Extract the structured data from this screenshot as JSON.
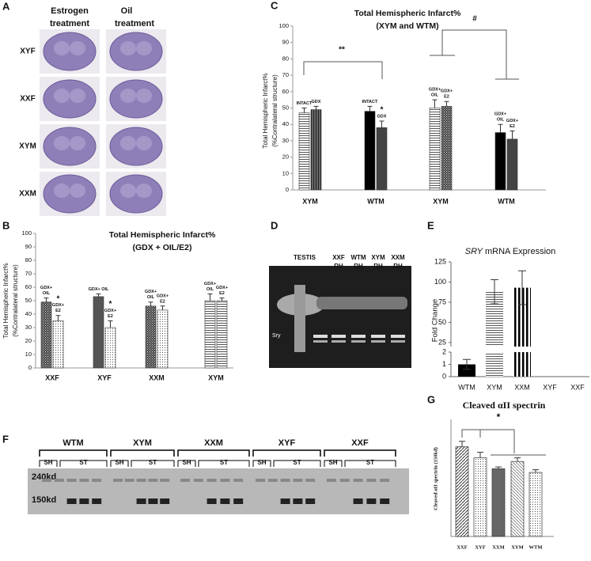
{
  "figure": {
    "panel_A": {
      "letter": "A",
      "columns": [
        [
          "Estrogen",
          "treatment"
        ],
        [
          "Oil",
          "treatment"
        ]
      ],
      "rows": [
        "XYF",
        "XXF",
        "XYM",
        "XXM"
      ]
    },
    "panel_D": {
      "letter": "D",
      "lanes": [
        [
          "TESTIS"
        ],
        [
          "XXF",
          "RH"
        ],
        [
          "WTM",
          "RH"
        ],
        [
          "XYM",
          "RH"
        ],
        [
          "XXM",
          "RH"
        ]
      ],
      "marker": "Sry"
    },
    "panel_F": {
      "letter": "F",
      "groups": [
        "WTM",
        "XYM",
        "XXM",
        "XYF",
        "XXF"
      ],
      "subgroups": [
        "SH",
        "ST"
      ],
      "sizes": [
        "240kd",
        "150kd"
      ]
    }
  },
  "chart_data": [
    {
      "type": "grouped_bar",
      "panel": "C",
      "title": "Total Hemispheric Infarct%",
      "subtitle": "(XYM and WTM)",
      "ylabel": [
        "Total Hemispheric Infarct%",
        "(%Contralateral structure)"
      ],
      "ylim": [
        0,
        100
      ],
      "yticks": [
        0,
        10,
        20,
        30,
        40,
        50,
        60,
        70,
        80,
        90,
        100
      ],
      "annotations": [
        "**",
        "#"
      ],
      "groups": [
        {
          "category": "XYM",
          "bars": [
            {
              "label": [
                "INTACT"
              ],
              "value": 47,
              "error": 3,
              "fill": "hstripe"
            },
            {
              "label": [
                "GDX"
              ],
              "value": 49,
              "error": 2,
              "fill": "darkhatch"
            }
          ]
        },
        {
          "category": "WTM",
          "bars": [
            {
              "label": [
                "INTACT"
              ],
              "value": 48,
              "error": 3,
              "fill": "#000000"
            },
            {
              "label": [
                "GDX"
              ],
              "note": "*",
              "value": 38,
              "error": 4,
              "fill": "#444444"
            }
          ]
        },
        {
          "category": "XYM",
          "bars": [
            {
              "label": [
                "GDX+",
                "OIL"
              ],
              "value": 50,
              "error": 5,
              "fill": "hstripe"
            },
            {
              "label": [
                "GDX+",
                "E2"
              ],
              "value": 51,
              "error": 3,
              "fill": "check"
            }
          ]
        },
        {
          "category": "WTM",
          "bars": [
            {
              "label": [
                "GDX+",
                "OIL"
              ],
              "value": 35,
              "error": 5,
              "fill": "#000000"
            },
            {
              "label": [
                "GDX+",
                "E2"
              ],
              "value": 31,
              "error": 5,
              "fill": "#444444"
            }
          ]
        }
      ]
    },
    {
      "type": "grouped_bar",
      "panel": "B",
      "title": "Total Hemispheric Infarct%",
      "subtitle": "(GDX + OIL/E2)",
      "ylabel": [
        "Total Hemispheric Infarct%",
        "(%Contralateral structure)"
      ],
      "ylim": [
        0,
        100
      ],
      "yticks": [
        0,
        10,
        20,
        30,
        40,
        50,
        60,
        70,
        80,
        90,
        100
      ],
      "annotations": [],
      "groups": [
        {
          "category": "XXF",
          "bars": [
            {
              "label": [
                "GDX+",
                "OIL"
              ],
              "value": 49,
              "error": 3,
              "fill": "check"
            },
            {
              "label": [
                "GDX+",
                "E2"
              ],
              "note": "*",
              "value": 35,
              "error": 4,
              "fill": "dots"
            }
          ]
        },
        {
          "category": "XYF",
          "bars": [
            {
              "label": [
                "GDX+ OIL"
              ],
              "value": 53,
              "error": 2,
              "fill": "#555555"
            },
            {
              "label": [
                "GDX+",
                "E2"
              ],
              "note": "*",
              "value": 30,
              "error": 5,
              "fill": "dots"
            }
          ]
        },
        {
          "category": "XXM",
          "bars": [
            {
              "label": [
                "GDX+",
                "OIL"
              ],
              "value": 46,
              "error": 3,
              "fill": "check"
            },
            {
              "label": [
                "GDX+",
                "E2"
              ],
              "value": 43,
              "error": 3,
              "fill": "dots"
            }
          ]
        },
        {
          "category": "XYM",
          "bars": [
            {
              "label": [
                "GDX+",
                "OIL"
              ],
              "value": 50,
              "error": 5,
              "fill": "hstripe"
            },
            {
              "label": [
                "GDX+",
                "E2"
              ],
              "value": 50,
              "error": 2,
              "fill": "hstripe"
            }
          ]
        }
      ]
    },
    {
      "type": "broken_bar",
      "panel": "E",
      "title_italic": "SRY",
      "title": " mRNA Expression",
      "ylabel": "Fold Change",
      "ylim_lower": [
        0,
        2
      ],
      "yticks_lower": [
        0,
        1,
        2
      ],
      "ylim_upper": [
        20,
        125
      ],
      "yticks_upper": [
        25,
        50,
        75,
        100,
        125
      ],
      "categories": [
        "WTM",
        "XYM",
        "XXM",
        "XYF",
        "XXF"
      ],
      "values": [
        1,
        88,
        93,
        0,
        0
      ],
      "errors": [
        0.4,
        15,
        21,
        0,
        0
      ],
      "fills": [
        "#000000",
        "hstripe",
        "vstripe",
        "#000000",
        "#000000"
      ]
    },
    {
      "type": "bar",
      "panel": "G",
      "title": "Cleaved αII spectrin",
      "ylabel": "Cleaved αII spectrin (150kd)",
      "ylim": [
        0,
        64
      ],
      "annotations": [
        "*"
      ],
      "categories": [
        "XXF",
        "XYF",
        "XXM",
        "XYM",
        "WTM"
      ],
      "values": [
        49,
        43,
        37,
        41,
        35
      ],
      "errors": [
        3,
        3,
        1,
        2,
        1.5
      ],
      "fills": [
        "diag",
        "dots",
        "#666666",
        "diaglight",
        "dots"
      ]
    }
  ]
}
